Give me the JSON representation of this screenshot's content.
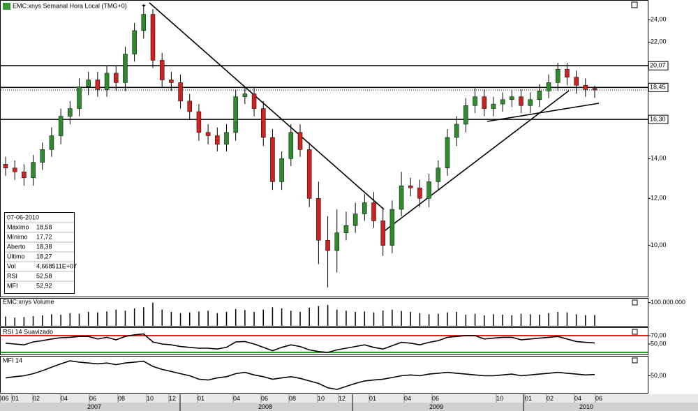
{
  "chart_data": {
    "type": "candlestick",
    "title": "EMC:xnys Semanal Hora Local (TMG+0)",
    "log_scale": true,
    "up_color": "#2e8b2e",
    "down_color": "#cc2222",
    "open": [
      13.7,
      13.5,
      13.3,
      13.0,
      13.8,
      14.5,
      15.3,
      16.5,
      17.0,
      18.5,
      19.0,
      18.3,
      19.5,
      18.8,
      21.0,
      23.0,
      24.5,
      20.5,
      19.0,
      18.8,
      17.5,
      16.8,
      15.5,
      15.3,
      14.8,
      15.5,
      17.8,
      18.0,
      17.0,
      15.2,
      12.8,
      14.0,
      15.5,
      14.5,
      12.0,
      10.2,
      9.8,
      10.5,
      10.8,
      11.3,
      11.8,
      11.0,
      10.0,
      11.5,
      12.6,
      12.5,
      12.0,
      12.8,
      13.5,
      15.2,
      16.0,
      17.2,
      17.8,
      17.0,
      17.3,
      17.6,
      17.8,
      17.2,
      17.6,
      18.2,
      18.8,
      19.8,
      19.2,
      18.6,
      18.38
    ],
    "high": [
      14.1,
      13.9,
      13.7,
      14.2,
      14.9,
      15.8,
      17.0,
      17.5,
      19.1,
      19.6,
      19.6,
      20.1,
      20.1,
      21.6,
      23.7,
      25.5,
      25.0,
      21.1,
      19.6,
      19.4,
      18.0,
      17.3,
      16.0,
      15.8,
      16.0,
      18.3,
      18.5,
      18.5,
      17.5,
      15.7,
      14.4,
      16.0,
      16.0,
      14.9,
      12.8,
      11.2,
      11.5,
      11.4,
      11.8,
      12.2,
      12.3,
      11.6,
      11.9,
      13.3,
      13.0,
      12.9,
      13.2,
      13.9,
      15.7,
      16.5,
      17.7,
      18.4,
      18.3,
      17.8,
      18.1,
      18.3,
      18.3,
      18.1,
      18.7,
      19.4,
      20.3,
      20.3,
      19.7,
      19.1,
      18.58
    ],
    "low": [
      13.1,
      12.9,
      12.6,
      12.6,
      13.4,
      14.1,
      14.8,
      16.0,
      16.5,
      17.9,
      17.8,
      17.8,
      18.2,
      18.2,
      20.4,
      22.3,
      19.9,
      18.4,
      18.2,
      17.0,
      16.3,
      15.0,
      14.8,
      14.4,
      14.4,
      15.0,
      17.3,
      16.5,
      14.7,
      12.4,
      12.4,
      13.6,
      14.1,
      11.6,
      9.3,
      8.5,
      9.0,
      10.2,
      10.5,
      11.0,
      10.7,
      9.6,
      9.7,
      11.2,
      12.1,
      11.6,
      11.6,
      12.4,
      13.1,
      14.7,
      15.5,
      16.7,
      16.5,
      16.5,
      16.8,
      17.1,
      16.7,
      16.7,
      17.1,
      17.7,
      18.2,
      18.6,
      18.0,
      17.8,
      17.72
    ],
    "close": [
      13.5,
      13.3,
      13.0,
      13.8,
      14.5,
      15.3,
      16.5,
      17.0,
      18.5,
      19.0,
      18.3,
      19.5,
      18.8,
      21.0,
      23.0,
      24.5,
      20.5,
      19.0,
      18.8,
      17.5,
      16.8,
      15.5,
      15.3,
      14.8,
      15.5,
      17.8,
      18.0,
      17.0,
      15.2,
      12.8,
      14.0,
      15.5,
      14.5,
      12.0,
      10.2,
      9.8,
      10.5,
      10.8,
      11.3,
      11.8,
      11.0,
      10.0,
      11.5,
      12.6,
      12.5,
      12.0,
      12.8,
      13.5,
      15.2,
      16.0,
      17.2,
      17.8,
      17.0,
      17.3,
      17.6,
      17.8,
      17.2,
      17.6,
      18.2,
      18.8,
      19.8,
      19.2,
      18.6,
      18.3,
      18.27
    ],
    "ylim": [
      8.2,
      25.9
    ],
    "yticks": [
      {
        "value": 24,
        "label": "24,00"
      },
      {
        "value": 22,
        "label": "22,00"
      },
      {
        "value": 14,
        "label": "14,00"
      },
      {
        "value": 12,
        "label": "12,00"
      },
      {
        "value": 10,
        "label": "10,00"
      }
    ],
    "levels": [
      {
        "value": 20.07,
        "label": "20,07"
      },
      {
        "value": 18.45,
        "label": "18,45"
      },
      {
        "value": 16.3,
        "label": "16,30"
      }
    ],
    "info": {
      "date": "07-06-2010",
      "rows": [
        [
          "Máximo",
          "18,58"
        ],
        [
          "Mínimo",
          "17,72"
        ],
        [
          "Aberto",
          "18,38"
        ],
        [
          "Último",
          "18,27"
        ],
        [
          "Vol",
          "4,668511E+07"
        ],
        [
          "RSI",
          "52,58"
        ],
        [
          "MFI",
          "52,92"
        ]
      ]
    },
    "volume": {
      "title": "EMC:xnys Volume",
      "color": "#000000",
      "ylim": [
        0,
        117000000
      ],
      "yticks": [
        {
          "value": 100000000,
          "label": "100.000.000"
        }
      ],
      "values": [
        40000000,
        35000000,
        38000000,
        42000000,
        45000000,
        50000000,
        48000000,
        55000000,
        52000000,
        60000000,
        58000000,
        62000000,
        70000000,
        65000000,
        75000000,
        80000000,
        100000000,
        70000000,
        60000000,
        55000000,
        58000000,
        62000000,
        65000000,
        55000000,
        60000000,
        72000000,
        68000000,
        60000000,
        70000000,
        80000000,
        75000000,
        65000000,
        60000000,
        78000000,
        85000000,
        90000000,
        70000000,
        65000000,
        60000000,
        62000000,
        58000000,
        66000000,
        70000000,
        64000000,
        60000000,
        55000000,
        50000000,
        52000000,
        58000000,
        60000000,
        48000000,
        52000000,
        45000000,
        50000000,
        48000000,
        46000000,
        52000000,
        50000000,
        48000000,
        55000000,
        60000000,
        58000000,
        50000000,
        46000000,
        46685110
      ]
    },
    "rsi": {
      "title": "RSI 14 Suavizado",
      "color": "#000000",
      "ylim": [
        25,
        88.3
      ],
      "yticks": [
        {
          "value": 70,
          "label": "70,00"
        },
        {
          "value": 50,
          "label": "50,00"
        }
      ],
      "levels": [
        {
          "value": 70,
          "color": "#dd2222"
        },
        {
          "value": 30,
          "color": "#2e9a2e"
        }
      ],
      "values": [
        52,
        50,
        48,
        55,
        58,
        62,
        65,
        66,
        68,
        68,
        62,
        66,
        60,
        68,
        72,
        74,
        55,
        50,
        48,
        44,
        42,
        40,
        40,
        38,
        42,
        55,
        56,
        50,
        42,
        34,
        42,
        48,
        44,
        36,
        32,
        30,
        36,
        40,
        44,
        48,
        42,
        38,
        46,
        54,
        52,
        48,
        54,
        58,
        66,
        68,
        70,
        70,
        62,
        64,
        66,
        66,
        60,
        62,
        64,
        66,
        68,
        62,
        56,
        54,
        52.58
      ]
    },
    "mfi": {
      "title": "MFI 14",
      "color": "#000000",
      "ylim": [
        10,
        95
      ],
      "yticks": [
        {
          "value": 50,
          "label": "50,00"
        }
      ],
      "values": [
        45,
        48,
        50,
        55,
        62,
        70,
        78,
        85,
        82,
        80,
        78,
        80,
        76,
        80,
        82,
        84,
        72,
        65,
        60,
        55,
        50,
        42,
        40,
        45,
        48,
        55,
        58,
        52,
        48,
        42,
        45,
        48,
        44,
        38,
        32,
        22,
        18,
        25,
        32,
        38,
        40,
        42,
        46,
        50,
        52,
        50,
        54,
        56,
        58,
        56,
        54,
        52,
        50,
        50,
        52,
        54,
        50,
        52,
        54,
        56,
        58,
        56,
        54,
        52,
        52.92
      ]
    },
    "x_axis": {
      "months": [
        "006",
        "01",
        "02",
        "04",
        "06",
        "08",
        "10",
        "12",
        "01",
        "04",
        "06",
        "08",
        "10",
        "12",
        "01",
        "04",
        "06",
        "10",
        "01",
        "02",
        "04",
        "06"
      ],
      "years": [
        "2007",
        "2008",
        "2009",
        "2010"
      ]
    }
  }
}
